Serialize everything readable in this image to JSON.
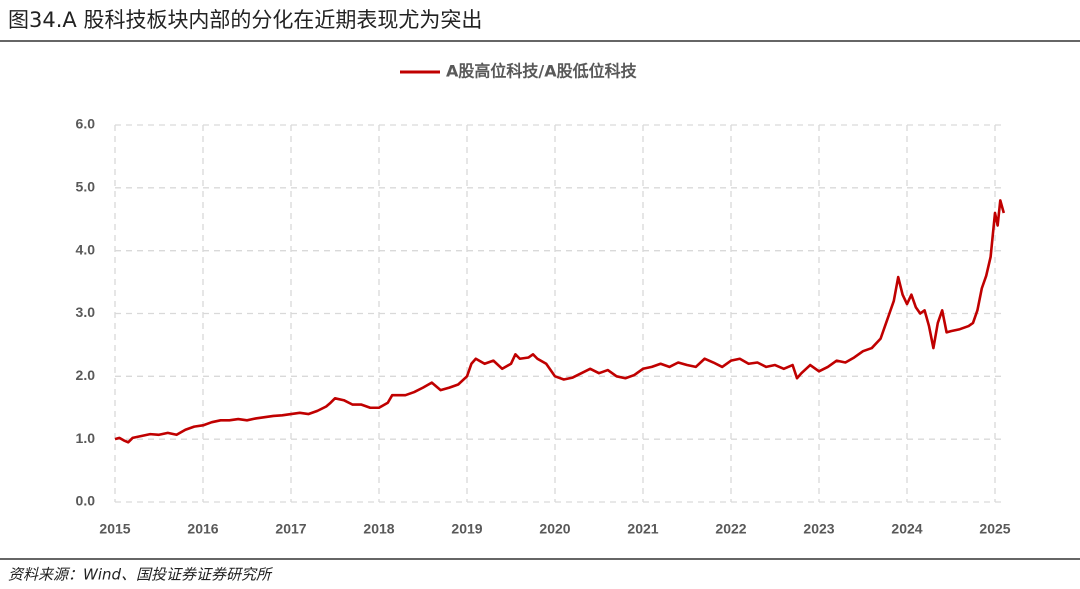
{
  "chart_data": {
    "type": "line",
    "title": "图34.A 股科技板块内部的分化在近期表现尤为突出",
    "source": "资料来源：Wind、国投证券证券研究所",
    "x": [
      2015.0,
      2015.05,
      2015.1,
      2015.15,
      2015.2,
      2015.3,
      2015.4,
      2015.5,
      2015.6,
      2015.7,
      2015.8,
      2015.9,
      2016.0,
      2016.1,
      2016.2,
      2016.3,
      2016.4,
      2016.5,
      2016.6,
      2016.7,
      2016.8,
      2016.9,
      2017.0,
      2017.1,
      2017.2,
      2017.3,
      2017.4,
      2017.45,
      2017.5,
      2017.6,
      2017.7,
      2017.8,
      2017.9,
      2018.0,
      2018.1,
      2018.15,
      2018.3,
      2018.4,
      2018.5,
      2018.6,
      2018.7,
      2018.8,
      2018.9,
      2019.0,
      2019.05,
      2019.1,
      2019.2,
      2019.3,
      2019.4,
      2019.5,
      2019.55,
      2019.6,
      2019.7,
      2019.75,
      2019.8,
      2019.9,
      2020.0,
      2020.1,
      2020.2,
      2020.3,
      2020.4,
      2020.5,
      2020.6,
      2020.7,
      2020.8,
      2020.9,
      2021.0,
      2021.1,
      2021.2,
      2021.3,
      2021.4,
      2021.5,
      2021.6,
      2021.7,
      2021.8,
      2021.9,
      2022.0,
      2022.1,
      2022.2,
      2022.3,
      2022.4,
      2022.5,
      2022.6,
      2022.7,
      2022.75,
      2022.8,
      2022.9,
      2023.0,
      2023.1,
      2023.2,
      2023.3,
      2023.4,
      2023.5,
      2023.6,
      2023.7,
      2023.75,
      2023.8,
      2023.85,
      2023.9,
      2023.95,
      2024.0,
      2024.05,
      2024.1,
      2024.15,
      2024.2,
      2024.25,
      2024.3,
      2024.35,
      2024.4,
      2024.45,
      2024.5,
      2024.6,
      2024.7,
      2024.75,
      2024.8,
      2024.85,
      2024.9,
      2024.95,
      2025.0,
      2025.03,
      2025.06,
      2025.1
    ],
    "series": [
      {
        "name": "A股高位科技/A股低位科技",
        "color": "#c00000",
        "values": [
          1.0,
          1.02,
          0.98,
          0.95,
          1.02,
          1.05,
          1.08,
          1.07,
          1.1,
          1.07,
          1.15,
          1.2,
          1.22,
          1.27,
          1.3,
          1.3,
          1.32,
          1.3,
          1.33,
          1.35,
          1.37,
          1.38,
          1.4,
          1.42,
          1.4,
          1.45,
          1.52,
          1.58,
          1.65,
          1.62,
          1.55,
          1.55,
          1.5,
          1.5,
          1.58,
          1.7,
          1.7,
          1.75,
          1.82,
          1.9,
          1.78,
          1.82,
          1.87,
          2.0,
          2.2,
          2.28,
          2.2,
          2.25,
          2.12,
          2.2,
          2.35,
          2.28,
          2.3,
          2.35,
          2.28,
          2.2,
          2.0,
          1.95,
          1.98,
          2.05,
          2.12,
          2.05,
          2.1,
          2.0,
          1.97,
          2.02,
          2.12,
          2.15,
          2.2,
          2.15,
          2.22,
          2.18,
          2.15,
          2.28,
          2.22,
          2.15,
          2.25,
          2.28,
          2.2,
          2.22,
          2.15,
          2.18,
          2.12,
          2.18,
          1.97,
          2.05,
          2.18,
          2.08,
          2.15,
          2.25,
          2.22,
          2.3,
          2.4,
          2.45,
          2.6,
          2.8,
          3.0,
          3.2,
          3.58,
          3.3,
          3.15,
          3.3,
          3.1,
          3.0,
          3.05,
          2.8,
          2.45,
          2.85,
          3.05,
          2.7,
          2.72,
          2.75,
          2.8,
          2.85,
          3.05,
          3.4,
          3.6,
          3.9,
          4.6,
          4.4,
          4.8,
          4.6
        ]
      }
    ],
    "xlim": [
      2015,
      2025.2
    ],
    "xticks": [
      2015,
      2016,
      2017,
      2018,
      2019,
      2020,
      2021,
      2022,
      2023,
      2024,
      2025
    ],
    "ylim": [
      0,
      6
    ],
    "yticks": [
      {
        "value": 0,
        "label": "0.0"
      },
      {
        "value": 1,
        "label": "1.0"
      },
      {
        "value": 2,
        "label": "2.0"
      },
      {
        "value": 3,
        "label": "3.0"
      },
      {
        "value": 4,
        "label": "4.0"
      },
      {
        "value": 5,
        "label": "5.0"
      },
      {
        "value": 6,
        "label": "6.0"
      }
    ],
    "grid": true,
    "legend": "top"
  }
}
